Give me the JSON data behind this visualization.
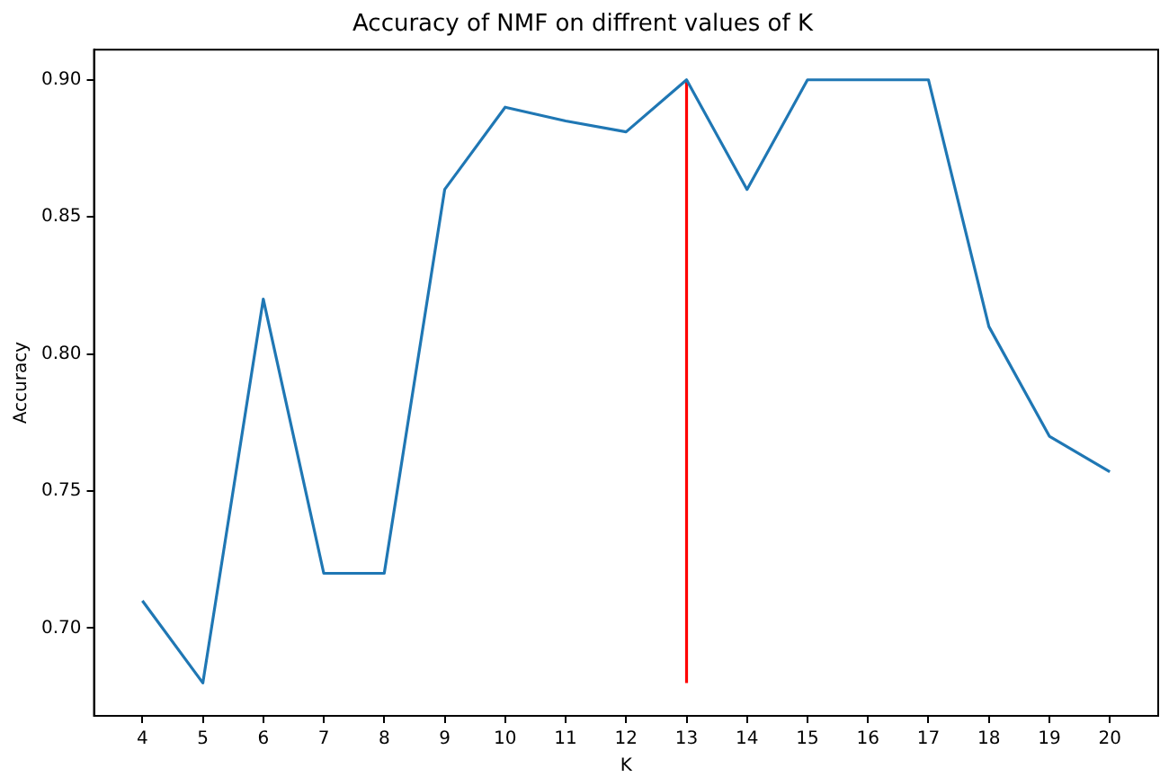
{
  "chart_data": {
    "type": "line",
    "title": "Accuracy of NMF on diffrent values of K",
    "xlabel": "K",
    "ylabel": "Accuracy",
    "x": [
      4,
      5,
      6,
      7,
      8,
      9,
      10,
      11,
      12,
      13,
      14,
      15,
      16,
      17,
      18,
      19,
      20
    ],
    "series": [
      {
        "color": "#1f77b4",
        "values": [
          0.71,
          0.68,
          0.82,
          0.72,
          0.72,
          0.86,
          0.89,
          0.885,
          0.881,
          0.9,
          0.86,
          0.9,
          0.9,
          0.9,
          0.81,
          0.77,
          0.757
        ]
      },
      {
        "type": "line",
        "color": "#ff0000",
        "x": [
          13,
          13
        ],
        "values": [
          0.68,
          0.9
        ]
      }
    ],
    "xlim": [
      3.2,
      20.8
    ],
    "xticks": [
      4,
      5,
      6,
      7,
      8,
      9,
      10,
      11,
      12,
      13,
      14,
      15,
      16,
      17,
      18,
      19,
      20
    ],
    "ylim": [
      0.668,
      0.911
    ],
    "yticks": [
      {
        "value": 0.7,
        "label": "0.70"
      },
      0.75,
      {
        "value": 0.8,
        "label": "0.80"
      },
      0.85,
      {
        "value": 0.9,
        "label": "0.90"
      }
    ],
    "grid": false,
    "legend": false,
    "marker": "none",
    "line_style": "solid"
  }
}
